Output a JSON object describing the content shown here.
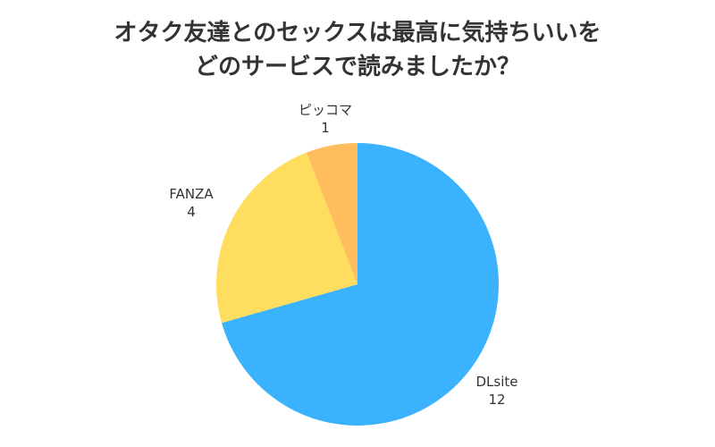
{
  "chart_data": {
    "type": "pie",
    "title_lines": [
      "オタク友達とのセックスは最高に気持ちいいを",
      "どのサービスで読みましたか？"
    ],
    "slices": [
      {
        "name": "DLsite",
        "value": 12,
        "color": "#3bb2fd"
      },
      {
        "name": "FANZA",
        "value": 4,
        "color": "#ffdd5e"
      },
      {
        "name": "ピッコマ",
        "value": 1,
        "color": "#ffbd5e"
      }
    ],
    "start_angle_deg": 0,
    "direction": "clockwise",
    "legend": "none"
  }
}
